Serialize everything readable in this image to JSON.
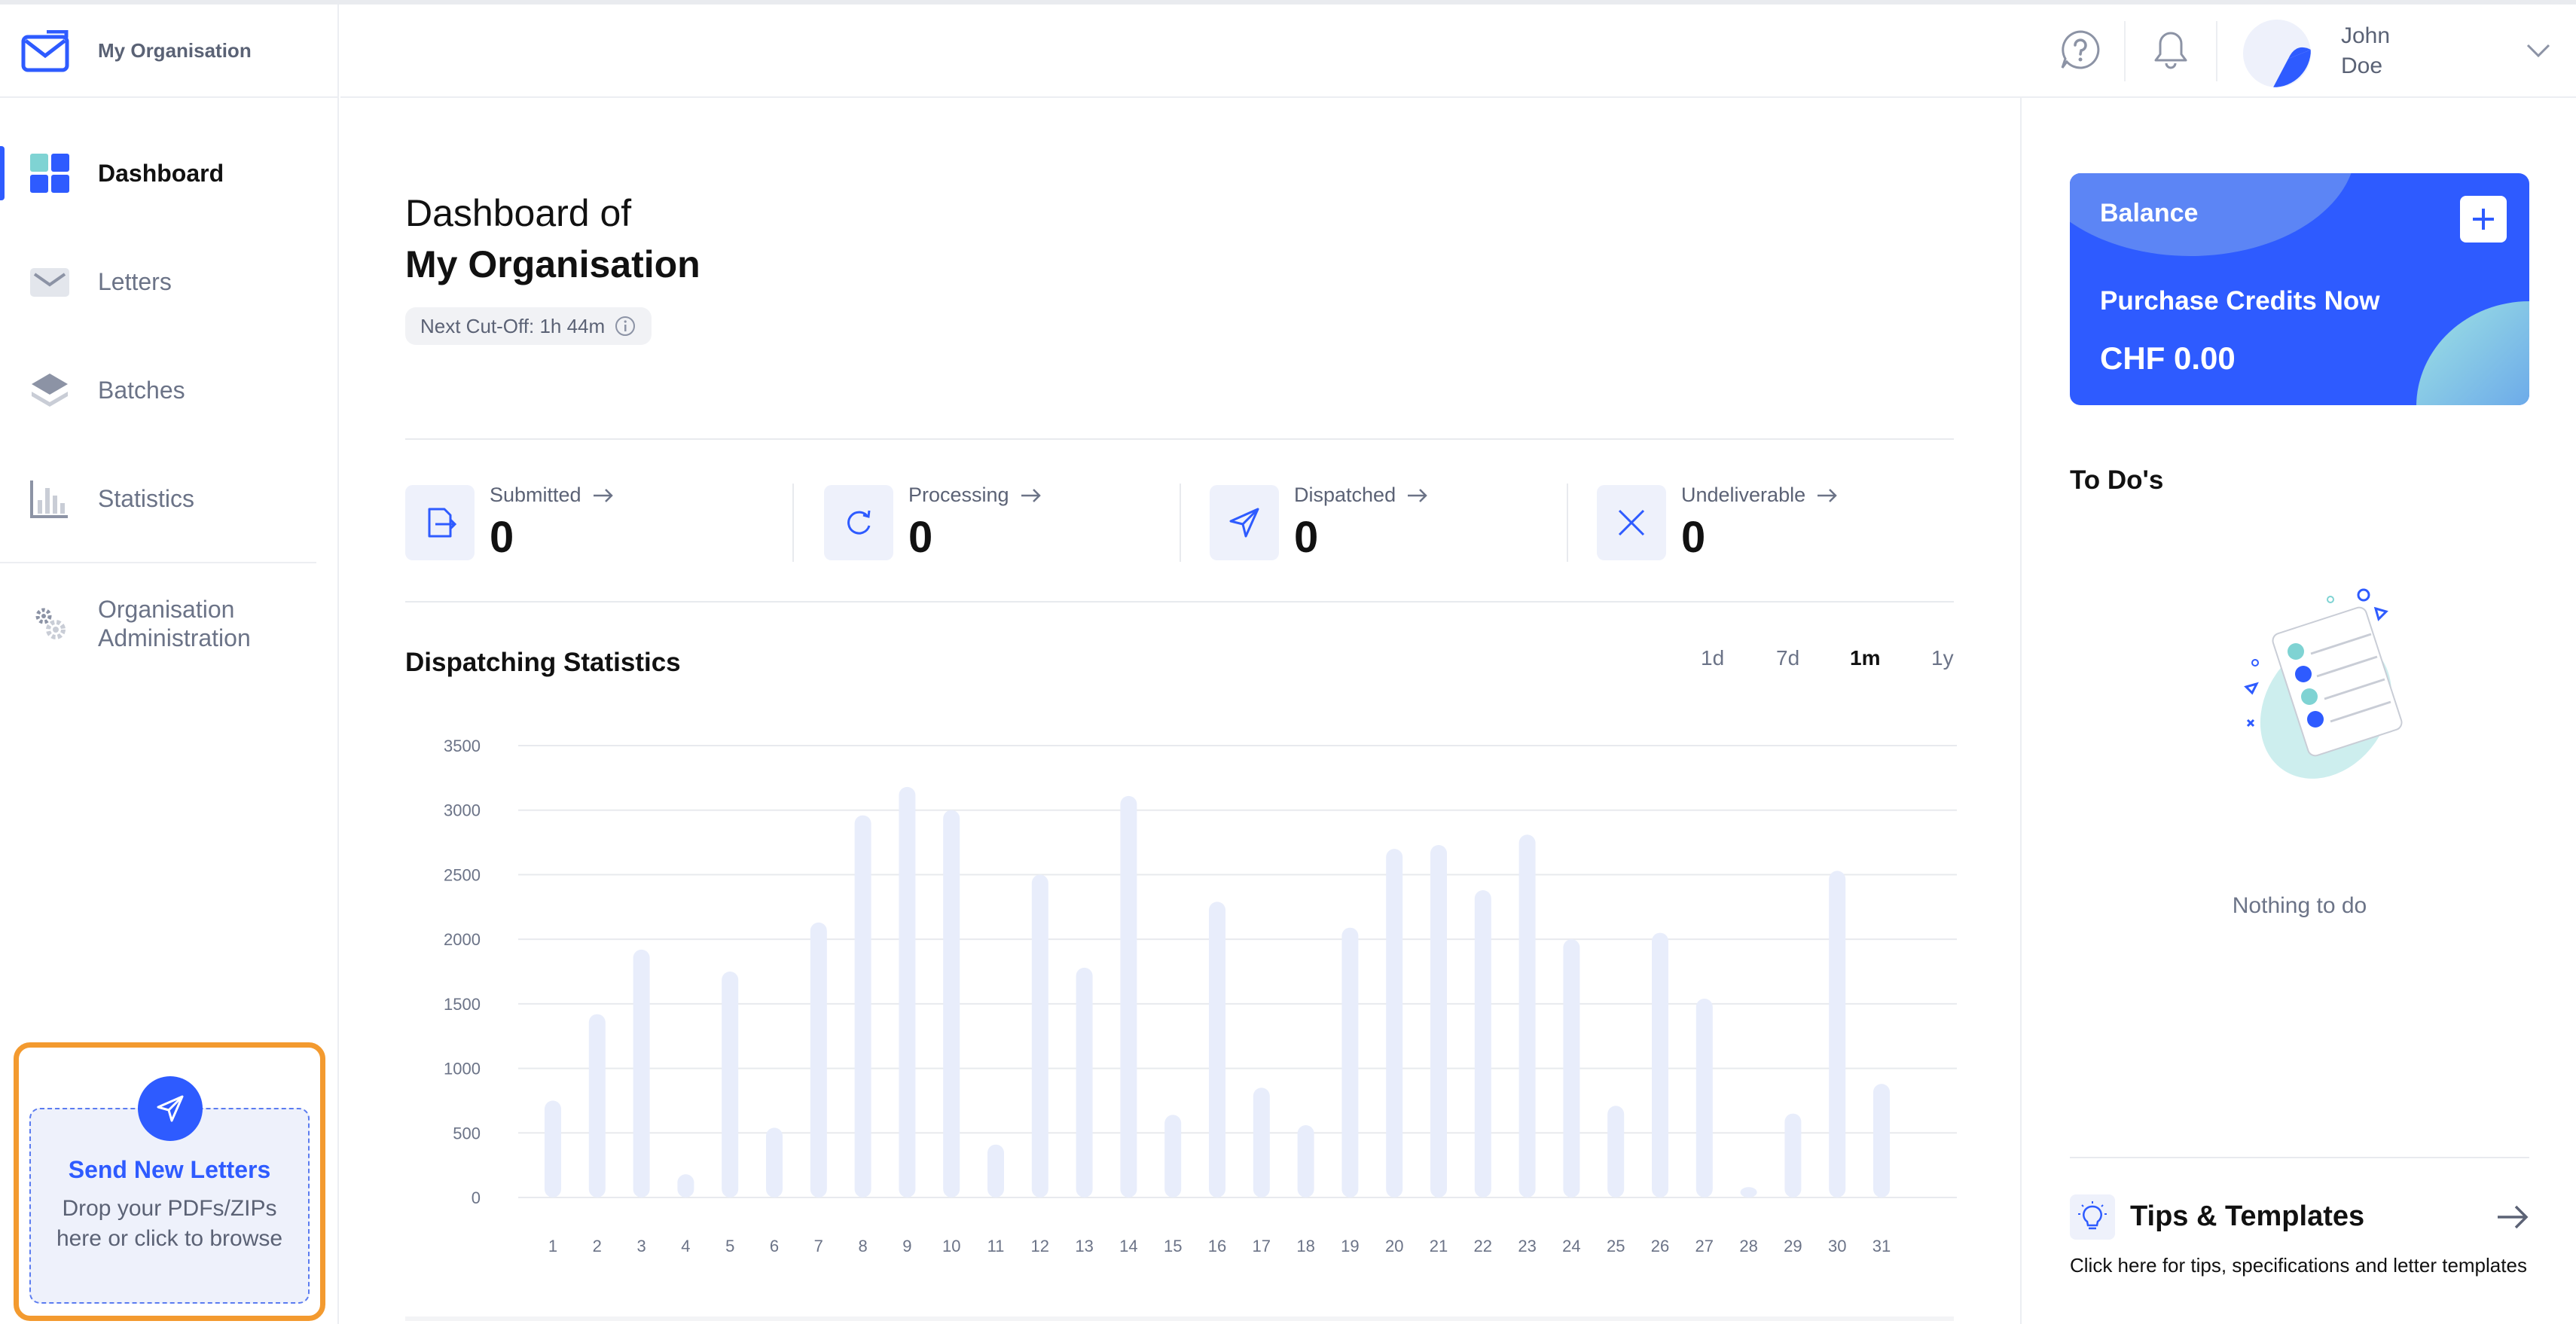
{
  "brand": {
    "org_name": "My Organisation",
    "logo_icon": "envelope-logo-icon"
  },
  "sidebar": {
    "items": [
      {
        "label": "Dashboard",
        "icon": "grid-icon",
        "active": true
      },
      {
        "label": "Letters",
        "icon": "envelope-icon"
      },
      {
        "label": "Batches",
        "icon": "layers-icon"
      },
      {
        "label": "Statistics",
        "icon": "bar-chart-icon"
      },
      {
        "label": "Organisation Administration",
        "icon": "gears-icon"
      }
    ],
    "drop": {
      "title": "Send New Letters",
      "subtitle": "Drop your PDFs/ZIPs here or click to browse",
      "icon": "send-icon"
    }
  },
  "header": {
    "help_icon": "help-icon",
    "bell_icon": "bell-icon",
    "user": {
      "first": "John",
      "last": "Doe"
    }
  },
  "main": {
    "title_line1": "Dashboard of",
    "title_line2": "My Organisation",
    "cutoff": "Next Cut-Off: 1h 44m",
    "stats": [
      {
        "label": "Submitted",
        "value": "0",
        "icon": "file-import-icon"
      },
      {
        "label": "Processing",
        "value": "0",
        "icon": "refresh-icon"
      },
      {
        "label": "Dispatched",
        "value": "0",
        "icon": "send-icon"
      },
      {
        "label": "Undeliverable",
        "value": "0",
        "icon": "close-icon"
      }
    ],
    "chart_section_title": "Dispatching Statistics",
    "ranges": [
      {
        "label": "1d",
        "active": false
      },
      {
        "label": "7d",
        "active": false
      },
      {
        "label": "1m",
        "active": true
      },
      {
        "label": "1y",
        "active": false
      }
    ]
  },
  "chart_data": {
    "type": "bar",
    "title": "Dispatching Statistics",
    "categories": [
      "1",
      "2",
      "3",
      "4",
      "5",
      "6",
      "7",
      "8",
      "9",
      "10",
      "11",
      "12",
      "13",
      "14",
      "15",
      "16",
      "17",
      "18",
      "19",
      "20",
      "21",
      "22",
      "23",
      "24",
      "25",
      "26",
      "27",
      "28",
      "29",
      "30",
      "31"
    ],
    "values": [
      750,
      1420,
      1920,
      180,
      1750,
      540,
      2130,
      2960,
      3180,
      3000,
      410,
      2500,
      1780,
      3110,
      640,
      2290,
      850,
      560,
      2090,
      2700,
      2730,
      2380,
      2810,
      2000,
      710,
      2050,
      1540,
      80,
      650,
      2530,
      880
    ],
    "ylim": [
      0,
      3500
    ],
    "yticks": [
      0,
      500,
      1000,
      1500,
      2000,
      2500,
      3000,
      3500
    ],
    "grid": true,
    "bar_color": "#e8edfb"
  },
  "right": {
    "balance": {
      "title": "Balance",
      "cta": "Purchase Credits Now",
      "amount": "CHF 0.00",
      "plus_icon": "plus-icon"
    },
    "todo": {
      "title": "To Do's",
      "empty": "Nothing to do",
      "illustration": "checklist-illustration-icon"
    },
    "tips": {
      "title": "Tips & Templates",
      "desc": "Click here for tips, specifications and letter templates",
      "icon": "lightbulb-icon",
      "arrow_icon": "arrow-right-icon"
    }
  },
  "colors": {
    "accent": "#2e5bff",
    "highlight": "#f39a2f"
  }
}
